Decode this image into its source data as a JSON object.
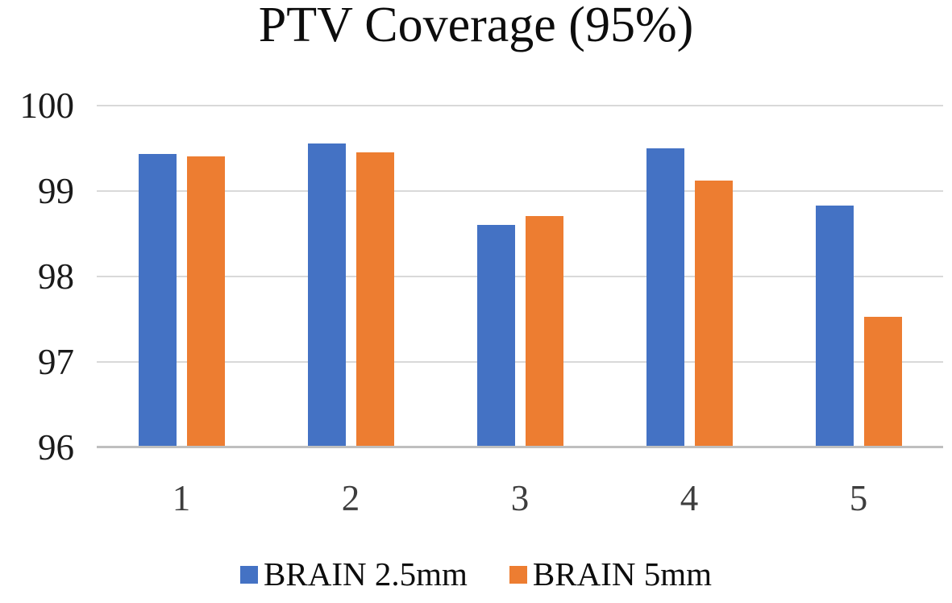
{
  "colors": {
    "series1": "#4472C4",
    "series2": "#ED7D31",
    "gridline": "#D9D9D9",
    "axis_line": "#BFBFBF",
    "title_text": "#0D0D0D",
    "tick_text": "#3D3D3D"
  },
  "chart_data": {
    "type": "bar",
    "title": "PTV Coverage (95%)",
    "categories": [
      "1",
      "2",
      "3",
      "4",
      "5"
    ],
    "series": [
      {
        "name": "BRAIN 2.5mm",
        "color": "#4472C4",
        "values": [
          99.43,
          99.56,
          98.6,
          99.5,
          98.83
        ]
      },
      {
        "name": "BRAIN 5mm",
        "color": "#ED7D31",
        "values": [
          99.41,
          99.45,
          98.71,
          99.12,
          97.53
        ]
      }
    ],
    "xlabel": "",
    "ylabel": "",
    "ylim": [
      96,
      100
    ],
    "yticks": [
      100,
      99,
      98,
      97,
      96
    ],
    "grid": true,
    "legend_position": "bottom"
  }
}
